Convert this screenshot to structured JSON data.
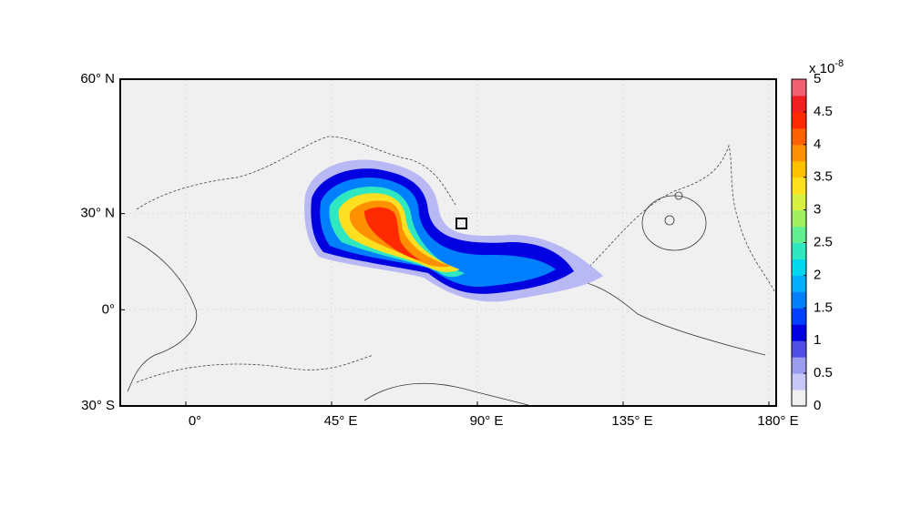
{
  "map": {
    "xlim": [
      -20.25,
      182.25
    ],
    "ylim": [
      -30,
      60
    ],
    "xticks": [
      {
        "value": 0,
        "label": "0°"
      },
      {
        "value": 45,
        "label": "45° E"
      },
      {
        "value": 90,
        "label": "90° E"
      },
      {
        "value": 135,
        "label": "135° E"
      },
      {
        "value": 180,
        "label": "180° E"
      }
    ],
    "yticks": [
      {
        "value": 60,
        "label": "60° N"
      },
      {
        "value": 30,
        "label": "30° N"
      },
      {
        "value": 0,
        "label": "0°"
      },
      {
        "value": -30,
        "label": "30° S"
      }
    ],
    "colorbar": {
      "multiplier": "x 10",
      "exponent": "-8",
      "lim": [
        0,
        5
      ],
      "ticks": [
        0,
        0.5,
        1,
        1.5,
        2,
        2.5,
        3,
        3.5,
        4,
        4.5,
        5
      ],
      "colors": [
        "#f0f0f0",
        "#c8c8f8",
        "#9b9bf0",
        "#5050e8",
        "#0000e0",
        "#0040ff",
        "#0080ff",
        "#00b0ff",
        "#00d8f0",
        "#30e8c0",
        "#60f090",
        "#a0f060",
        "#d8f040",
        "#ffe020",
        "#ffc000",
        "#ff9000",
        "#ff6000",
        "#ff2a00",
        "#f02020",
        "#f06070"
      ]
    }
  }
}
